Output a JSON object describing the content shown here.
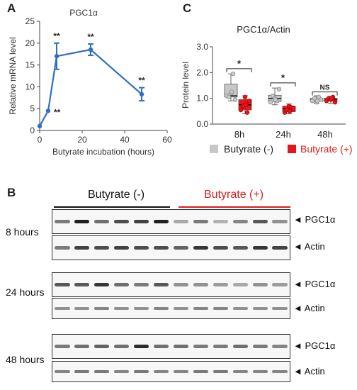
{
  "panel_letters": {
    "a": "A",
    "b": "B",
    "c": "C"
  },
  "colors": {
    "line": "#2f6fc0",
    "grey_box": "#c8c8c8",
    "red_box": "#e8141b",
    "red_text": "#e11a1a"
  },
  "chart_data": [
    {
      "type": "line",
      "title": "PGC1α",
      "xlabel": "Butyrate incubation (hours)",
      "ylabel": "Relative mRNA level",
      "xlim": [
        0,
        60
      ],
      "ylim": [
        0,
        25
      ],
      "xticks": [
        "0",
        "20",
        "40",
        "60"
      ],
      "yticks": [
        "0",
        "5",
        "10",
        "15",
        "20",
        "25"
      ],
      "x": [
        0,
        4,
        8,
        24,
        48
      ],
      "y": [
        1.0,
        4.5,
        17.0,
        18.5,
        8.3
      ],
      "error": [
        0,
        0,
        3.0,
        1.3,
        1.5
      ],
      "annotations": [
        "",
        "**",
        "**",
        "**",
        "**"
      ]
    },
    {
      "type": "box",
      "title": "PGC1α/Actin",
      "ylabel": "Protein level",
      "ylim": [
        0,
        3
      ],
      "yticks": [
        "0.0",
        "1.0",
        "2.0",
        "3.0"
      ],
      "categories": [
        "8h",
        "24h",
        "48h"
      ],
      "significance": [
        "*",
        "*",
        "NS"
      ],
      "series": [
        {
          "name": "Butyrate (-)",
          "color": "#c8c8c8",
          "boxes": [
            {
              "min": 0.9,
              "q1": 1.05,
              "median": 1.1,
              "q3": 1.55,
              "max": 1.95,
              "points": [
                1.1,
                1.05,
                1.2,
                1.95,
                0.95,
                1.25
              ]
            },
            {
              "min": 0.75,
              "q1": 0.88,
              "median": 1.0,
              "q3": 1.12,
              "max": 1.4,
              "points": [
                0.85,
                1.1,
                1.0,
                0.9,
                1.35,
                0.95
              ]
            },
            {
              "min": 0.8,
              "q1": 0.88,
              "median": 0.95,
              "q3": 1.0,
              "max": 1.1,
              "points": [
                0.9,
                1.0,
                0.85,
                1.05,
                0.95,
                0.9
              ]
            }
          ]
        },
        {
          "name": "Butyrate (+)",
          "color": "#e8141b",
          "boxes": [
            {
              "min": 0.4,
              "q1": 0.55,
              "median": 0.75,
              "q3": 0.95,
              "max": 1.1,
              "points": [
                0.55,
                0.7,
                1.05,
                0.45,
                0.9,
                0.75
              ]
            },
            {
              "min": 0.4,
              "q1": 0.48,
              "median": 0.6,
              "q3": 0.7,
              "max": 0.78,
              "points": [
                0.45,
                0.55,
                0.7,
                0.65,
                0.6,
                0.5
              ]
            },
            {
              "min": 0.8,
              "q1": 0.9,
              "median": 0.97,
              "q3": 1.0,
              "max": 1.08,
              "points": [
                0.9,
                1.0,
                0.95,
                1.05,
                0.85,
                1.0
              ]
            }
          ]
        }
      ]
    }
  ],
  "blot": {
    "group_neg": "Butyrate (-)",
    "group_pos": "Butyrate (+)",
    "time_labels": [
      "8 hours",
      "24 hours",
      "48 hours"
    ],
    "protein_labels": [
      "PGC1α",
      "Actin"
    ],
    "arrow": "◄"
  }
}
